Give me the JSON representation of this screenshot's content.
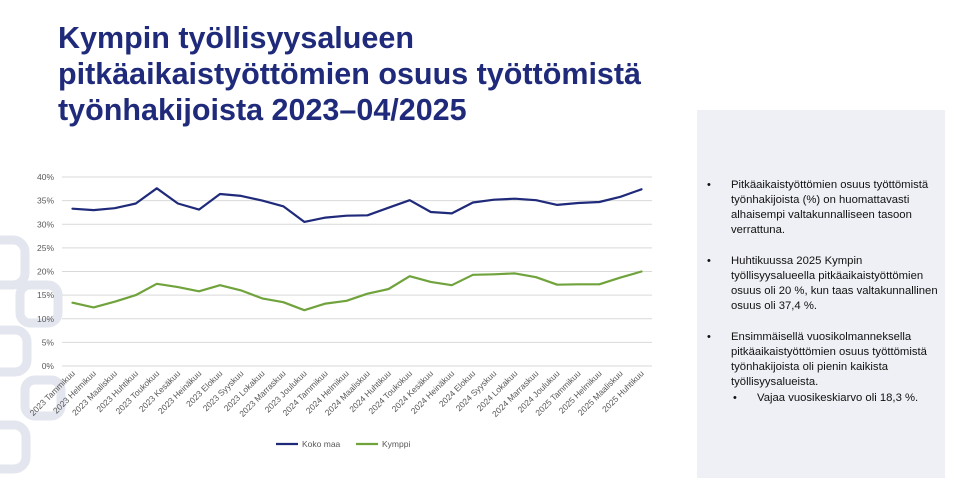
{
  "title": "Kympin työllisyysalueen pitkäaikaistyöttömien osuus työttömistä työnhakijoista 2023–04/2025",
  "panel": {
    "bullets": [
      "Pitkäaikaistyöttömien osuus työttömistä työnhakijoista (%) on huomattavasti alhaisempi valtakunnalliseen tasoon verrattuna.",
      "Huhtikuussa 2025 Kympin työllisyysalueella pitkäaikaistyöttömien osuus oli 20 %, kun taas valtakunnallinen osuus oli 37,4 %.",
      "Ensimmäisellä vuosikolmanneksella pitkäaikaistyöttömien osuus työttömistä työnhakijoista oli pienin kaikista työllisyysalueista."
    ],
    "sub_bullet": "Vajaa vuosikeskiarvo oli 18,3 %."
  },
  "colors": {
    "title": "#1f2a7a",
    "koko_maa": "#1f2a7a",
    "kymppi": "#70a33c",
    "gridline": "#d9d9d9",
    "deco": "#e3e6ee"
  },
  "chart_data": {
    "type": "line",
    "categories": [
      "2023 Tammikuu",
      "2023 Helmikuu",
      "2023 Maaliskuu",
      "2023 Huhtikuu",
      "2023 Toukokuu",
      "2023 Kesäkuu",
      "2023 Heinäkuu",
      "2023 Elokuu",
      "2023 Syyskuu",
      "2023 Lokakuu",
      "2023 Marraskuu",
      "2023 Joulukuu",
      "2024 Tammikuu",
      "2024 Helmikuu",
      "2024 Maaliskuu",
      "2024 Huhtikuu",
      "2024 Toukokuu",
      "2024 Kesäkuu",
      "2024 Heinäkuu",
      "2024 Elokuu",
      "2024 Syyskuu",
      "2024 Lokakuu",
      "2024 Marraskuu",
      "2024 Joulukuu",
      "2025 Tammikuu",
      "2025 Helmikuu",
      "2025 Maaliskuu",
      "2025 Huhtikuu"
    ],
    "series": [
      {
        "name": "Koko maa",
        "values": [
          33.3,
          33.0,
          33.4,
          34.4,
          37.6,
          34.4,
          33.1,
          36.4,
          36.0,
          35.0,
          33.8,
          30.5,
          31.4,
          31.8,
          31.9,
          33.5,
          35.1,
          32.6,
          32.3,
          34.6,
          35.2,
          35.4,
          35.1,
          34.1,
          34.5,
          34.7,
          35.8,
          37.4
        ]
      },
      {
        "name": "Kymppi",
        "values": [
          13.4,
          12.4,
          13.6,
          15.0,
          17.4,
          16.7,
          15.8,
          17.1,
          16.0,
          14.3,
          13.5,
          11.8,
          13.2,
          13.8,
          15.3,
          16.3,
          19.0,
          17.8,
          17.1,
          19.3,
          19.4,
          19.6,
          18.8,
          17.2,
          17.3,
          17.3,
          18.7,
          20.0
        ]
      }
    ],
    "y_ticks": [
      "0%",
      "5%",
      "10%",
      "15%",
      "20%",
      "25%",
      "30%",
      "35%",
      "40%"
    ],
    "ylim": [
      0,
      40
    ],
    "grid": true,
    "legend_position": "bottom"
  }
}
